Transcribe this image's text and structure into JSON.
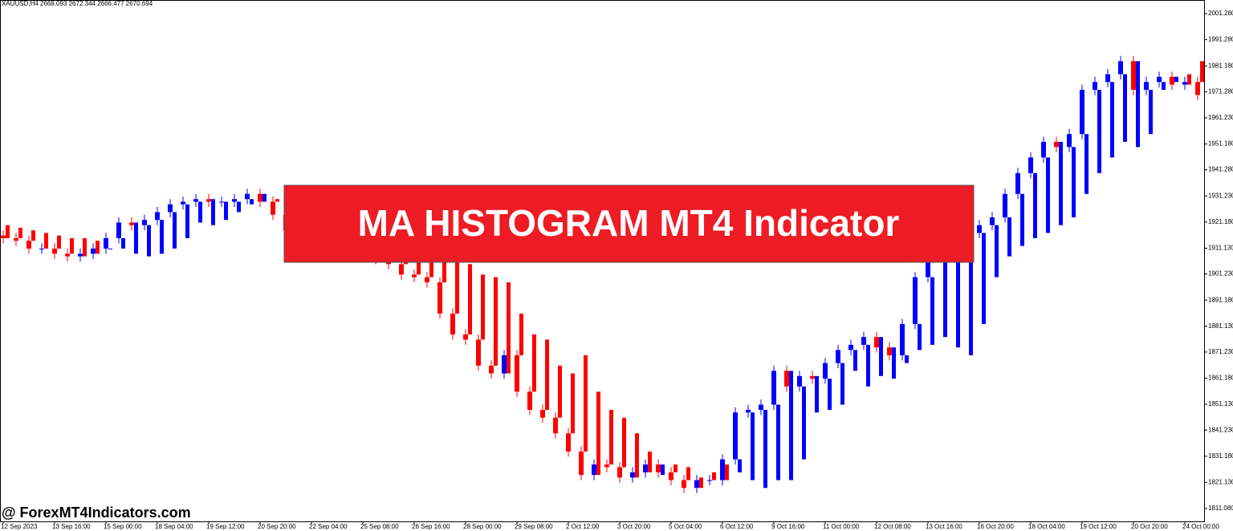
{
  "chart_data": {
    "type": "candlestick",
    "title": "XAUUSD,H4  2668.093 2672.344 2666.477 2670.694",
    "banner": "MA HISTOGRAM MT4 Indicator",
    "watermark": "@ ForexMT4Indicators.com",
    "up_color": "#0000ff",
    "down_color": "#ff0000",
    "ylim": [
      1806.15,
      2006.52
    ],
    "yticks": [
      {
        "value": 2001.28,
        "label": "2001.280"
      },
      {
        "value": 1991.28,
        "label": "1991.280"
      },
      {
        "value": 1981.18,
        "label": "1981.180"
      },
      {
        "value": 1971.28,
        "label": "1971.280"
      },
      {
        "value": 1961.23,
        "label": "1961.230"
      },
      {
        "value": 1951.18,
        "label": "1951.180"
      },
      {
        "value": 1941.28,
        "label": "1941.280"
      },
      {
        "value": 1931.23,
        "label": "1931.230"
      },
      {
        "value": 1921.18,
        "label": "1921.180"
      },
      {
        "value": 1911.13,
        "label": "1911.130"
      },
      {
        "value": 1901.23,
        "label": "1901.230"
      },
      {
        "value": 1891.18,
        "label": "1891.180"
      },
      {
        "value": 1881.13,
        "label": "1881.130"
      },
      {
        "value": 1871.23,
        "label": "1871.230"
      },
      {
        "value": 1861.18,
        "label": "1861.180"
      },
      {
        "value": 1851.13,
        "label": "1851.130"
      },
      {
        "value": 1841.23,
        "label": "1841.230"
      },
      {
        "value": 1831.18,
        "label": "1831.180"
      },
      {
        "value": 1821.13,
        "label": "1821.130"
      },
      {
        "value": 1811.08,
        "label": "1811.080"
      }
    ],
    "categories": [
      "12 Sep 2023",
      null,
      null,
      null,
      "13 Sep 16:00",
      null,
      null,
      null,
      "15 Sep 00:00",
      null,
      null,
      null,
      "18 Sep 04:00",
      null,
      null,
      null,
      "19 Sep 12:00",
      null,
      null,
      null,
      "20 Sep 20:00",
      null,
      null,
      null,
      "22 Sep 04:00",
      null,
      null,
      null,
      "25 Sep 08:00",
      null,
      null,
      null,
      "26 Sep 16:00",
      null,
      null,
      null,
      "28 Sep 00:00",
      null,
      null,
      null,
      "29 Sep 08:00",
      null,
      null,
      null,
      "2 Oct 12:00",
      null,
      null,
      null,
      "3 Oct 20:00",
      null,
      null,
      null,
      "5 Oct 04:00",
      null,
      null,
      null,
      "6 Oct 12:00",
      null,
      null,
      null,
      "9 Oct 16:00",
      null,
      null,
      null,
      "11 Oct 00:00",
      null,
      null,
      null,
      "12 Oct 08:00",
      null,
      null,
      null,
      "13 Oct 16:00",
      null,
      null,
      null,
      "16 Oct 20:00",
      null,
      null,
      null,
      "18 Oct 04:00",
      null,
      null,
      null,
      "19 Oct 12:00",
      null,
      null,
      null,
      "20 Oct 20:00",
      null,
      null,
      null,
      "24 Oct 00:00",
      null
    ],
    "open": [
      1916,
      1915,
      1914,
      1911,
      1911,
      1909,
      1908,
      1909,
      1911,
      1915,
      1921,
      1920,
      1922,
      1925,
      1928,
      1929,
      1930,
      1929,
      1929,
      1930,
      1932,
      1929,
      1924,
      1918,
      1920,
      1917,
      1915,
      1913,
      1914,
      1910,
      1907,
      1905,
      1901,
      1900,
      1898,
      1886,
      1878,
      1876,
      1866,
      1863,
      1870,
      1856,
      1849,
      1846,
      1840,
      1833,
      1824,
      1828,
      1827,
      1823,
      1825,
      1828,
      1825,
      1822,
      1819,
      1822,
      1822,
      1830,
      1848,
      1849,
      1851,
      1864,
      1858,
      1862,
      1861,
      1867,
      1872,
      1874,
      1877,
      1873,
      1870,
      1882,
      1900,
      1908,
      1912,
      1915,
      1917,
      1920,
      1923,
      1932,
      1940,
      1946,
      1952,
      1950,
      1955,
      1972,
      1975,
      1978,
      1983,
      1972,
      1975,
      1977,
      1974,
      1975
    ],
    "high": [
      1918,
      1917,
      1916,
      1913,
      1913,
      1911,
      1911,
      1913,
      1917,
      1923,
      1923,
      1924,
      1927,
      1930,
      1931,
      1932,
      1932,
      1931,
      1932,
      1934,
      1934,
      1931,
      1926,
      1922,
      1922,
      1919,
      1917,
      1916,
      1916,
      1912,
      1909,
      1907,
      1903,
      1902,
      1900,
      1888,
      1880,
      1878,
      1868,
      1872,
      1872,
      1858,
      1851,
      1848,
      1842,
      1835,
      1830,
      1830,
      1829,
      1827,
      1830,
      1830,
      1827,
      1824,
      1824,
      1824,
      1832,
      1850,
      1851,
      1853,
      1866,
      1866,
      1864,
      1864,
      1869,
      1874,
      1876,
      1879,
      1879,
      1875,
      1884,
      1902,
      1910,
      1914,
      1917,
      1919,
      1922,
      1925,
      1934,
      1942,
      1948,
      1954,
      1954,
      1957,
      1974,
      1977,
      1980,
      1985,
      1985,
      1977,
      1979,
      1979,
      1977,
      1977
    ],
    "low": [
      1913,
      1912,
      1909,
      1909,
      1907,
      1906,
      1906,
      1907,
      1909,
      1913,
      1918,
      1918,
      1920,
      1923,
      1926,
      1927,
      1927,
      1927,
      1927,
      1928,
      1927,
      1922,
      1916,
      1916,
      1915,
      1913,
      1911,
      1911,
      1908,
      1905,
      1903,
      1899,
      1898,
      1896,
      1884,
      1876,
      1874,
      1864,
      1861,
      1861,
      1854,
      1847,
      1844,
      1838,
      1831,
      1822,
      1822,
      1825,
      1821,
      1821,
      1823,
      1823,
      1820,
      1817,
      1817,
      1820,
      1820,
      1828,
      1846,
      1847,
      1849,
      1856,
      1856,
      1859,
      1859,
      1865,
      1870,
      1872,
      1871,
      1868,
      1868,
      1880,
      1898,
      1906,
      1910,
      1913,
      1915,
      1918,
      1921,
      1930,
      1938,
      1944,
      1948,
      1948,
      1953,
      1970,
      1973,
      1976,
      1970,
      1970,
      1973,
      1972,
      1972,
      1968
    ],
    "close": [
      1915,
      1914,
      1911,
      1911,
      1909,
      1908,
      1909,
      1911,
      1915,
      1921,
      1920,
      1922,
      1925,
      1928,
      1929,
      1930,
      1929,
      1929,
      1930,
      1932,
      1929,
      1924,
      1918,
      1920,
      1917,
      1915,
      1913,
      1914,
      1910,
      1907,
      1905,
      1901,
      1900,
      1898,
      1886,
      1878,
      1876,
      1866,
      1863,
      1870,
      1856,
      1849,
      1846,
      1840,
      1833,
      1824,
      1828,
      1827,
      1823,
      1825,
      1828,
      1825,
      1822,
      1819,
      1822,
      1822,
      1830,
      1848,
      1849,
      1851,
      1864,
      1858,
      1862,
      1861,
      1867,
      1872,
      1874,
      1877,
      1873,
      1870,
      1882,
      1900,
      1908,
      1912,
      1915,
      1917,
      1920,
      1923,
      1932,
      1940,
      1946,
      1952,
      1950,
      1955,
      1972,
      1975,
      1978,
      1983,
      1972,
      1975,
      1977,
      1974,
      1975,
      1970
    ],
    "ma_fast": [
      1915,
      1915,
      1914,
      1911,
      1911,
      1909,
      1908,
      1909,
      1911,
      1915,
      1921,
      1920,
      1922,
      1925,
      1928,
      1929,
      1930,
      1929,
      1929,
      1930,
      1932,
      1929,
      1924,
      1918,
      1920,
      1917,
      1915,
      1913,
      1914,
      1910,
      1907,
      1905,
      1901,
      1900,
      1898,
      1886,
      1878,
      1876,
      1866,
      1863,
      1870,
      1856,
      1849,
      1846,
      1840,
      1833,
      1824,
      1828,
      1827,
      1823,
      1825,
      1828,
      1825,
      1822,
      1819,
      1822,
      1822,
      1830,
      1848,
      1849,
      1851,
      1864,
      1858,
      1862,
      1861,
      1867,
      1872,
      1874,
      1877,
      1873,
      1870,
      1882,
      1900,
      1908,
      1912,
      1915,
      1917,
      1920,
      1923,
      1932,
      1940,
      1946,
      1952,
      1950,
      1955,
      1972,
      1975,
      1978,
      1983,
      1972,
      1975,
      1977,
      1974,
      1975
    ],
    "ma_slow": [
      1920,
      1919,
      1918,
      1917,
      1916,
      1915,
      1915,
      1914,
      1911,
      1911,
      1909,
      1908,
      1909,
      1911,
      1915,
      1921,
      1920,
      1922,
      1925,
      1928,
      1929,
      1930,
      1929,
      1929,
      1930,
      1932,
      1929,
      1924,
      1918,
      1920,
      1917,
      1915,
      1913,
      1914,
      1910,
      1907,
      1905,
      1901,
      1900,
      1898,
      1886,
      1878,
      1876,
      1866,
      1863,
      1870,
      1856,
      1849,
      1846,
      1840,
      1833,
      1824,
      1828,
      1827,
      1823,
      1825,
      1828,
      1825,
      1822,
      1819,
      1822,
      1822,
      1830,
      1848,
      1849,
      1851,
      1864,
      1858,
      1862,
      1861,
      1867,
      1872,
      1874,
      1877,
      1873,
      1870,
      1882,
      1900,
      1908,
      1912,
      1915,
      1917,
      1920,
      1923,
      1932,
      1940,
      1946,
      1952,
      1950,
      1955,
      1972,
      1975,
      1978,
      1983
    ]
  }
}
